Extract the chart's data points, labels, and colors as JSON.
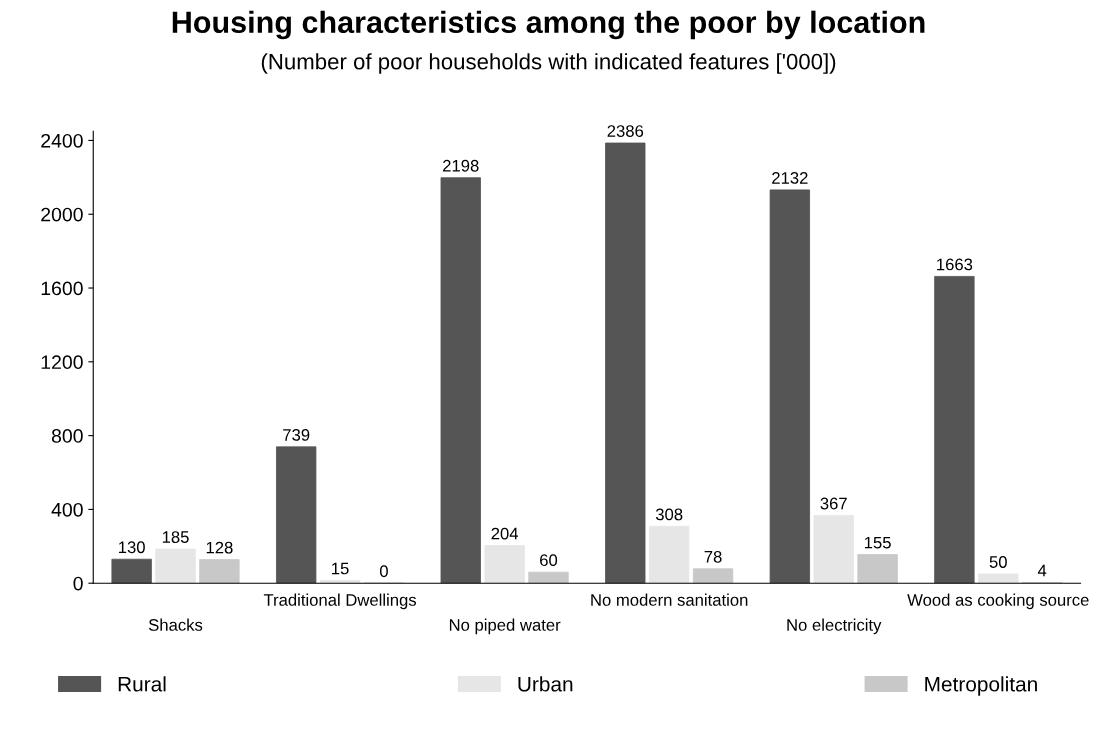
{
  "chart_data": {
    "type": "bar",
    "title": "Housing characteristics among the poor by location",
    "subtitle": "(Number of poor households with indicated features ['000])",
    "categories": [
      "Shacks",
      "Traditional Dwellings",
      "No piped water",
      "No modern sanitation",
      "No electricity",
      "Wood as cooking source"
    ],
    "series": [
      {
        "name": "Rural",
        "color": "#555555",
        "values": [
          130,
          739,
          2198,
          2386,
          2132,
          1663
        ]
      },
      {
        "name": "Urban",
        "color": "#e6e6e6",
        "values": [
          185,
          15,
          204,
          308,
          367,
          50
        ]
      },
      {
        "name": "Metropolitan",
        "color": "#c8c8c8",
        "values": [
          128,
          0,
          60,
          78,
          155,
          4
        ]
      }
    ],
    "ylim": [
      0,
      2450
    ],
    "yticks": [
      0,
      400,
      800,
      1200,
      1600,
      2000,
      2400
    ],
    "data_labels": true,
    "legend": "bottom",
    "grid": false
  }
}
